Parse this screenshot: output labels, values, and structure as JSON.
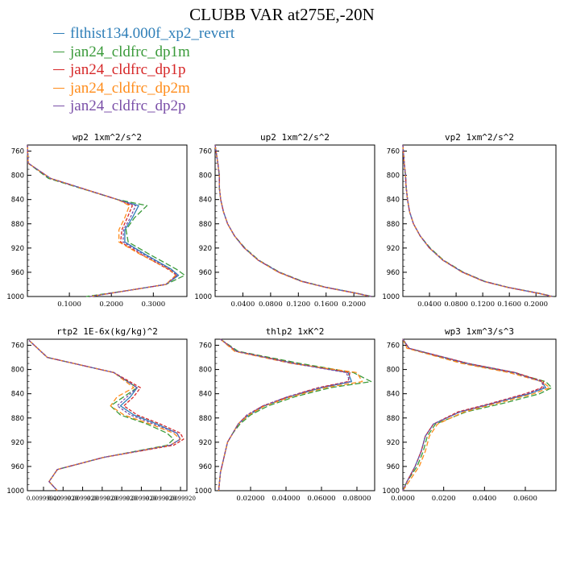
{
  "title": "CLUBB VAR at275E,-20N",
  "legend": [
    {
      "label": "flthist134.000f_xp2_revert",
      "color": "#2f7fb8"
    },
    {
      "label": "jan24_cldfrc_dp1m",
      "color": "#3a9a3a"
    },
    {
      "label": "jan24_cldfrc_dp1p",
      "color": "#d62728"
    },
    {
      "label": "jan24_cldfrc_dp2m",
      "color": "#ff8c1a"
    },
    {
      "label": "jan24_cldfrc_dp2p",
      "color": "#7a4fa8"
    }
  ],
  "chart_data": [
    {
      "type": "line",
      "title": "wp2  1xm^2/s^2",
      "ylim": [
        1000,
        750
      ],
      "xlim": [
        0,
        0.38
      ],
      "yticks": [
        "760",
        "800",
        "840",
        "880",
        "920",
        "960",
        "1000"
      ],
      "xticks": [
        "0.1000",
        "0.2000",
        "0.3000"
      ],
      "y": [
        750,
        780,
        805,
        840,
        850,
        870,
        890,
        910,
        930,
        955,
        965,
        980,
        990,
        1000
      ],
      "series": [
        {
          "name": "flthist134.000f_xp2_revert",
          "values": [
            0,
            0.002,
            0.055,
            0.215,
            0.265,
            0.25,
            0.232,
            0.232,
            0.28,
            0.343,
            0.36,
            0.33,
            0.24,
            0.15
          ]
        },
        {
          "name": "jan24_cldfrc_dp1m",
          "values": [
            0,
            0.002,
            0.05,
            0.215,
            0.285,
            0.255,
            0.235,
            0.24,
            0.29,
            0.355,
            0.375,
            0.33,
            0.24,
            0.14
          ]
        },
        {
          "name": "jan24_cldfrc_dp1p",
          "values": [
            0,
            0.002,
            0.055,
            0.215,
            0.25,
            0.238,
            0.225,
            0.222,
            0.27,
            0.335,
            0.355,
            0.33,
            0.24,
            0.15
          ]
        },
        {
          "name": "jan24_cldfrc_dp2m",
          "values": [
            0,
            0.002,
            0.055,
            0.215,
            0.243,
            0.232,
            0.218,
            0.218,
            0.268,
            0.338,
            0.353,
            0.33,
            0.24,
            0.15
          ]
        },
        {
          "name": "jan24_cldfrc_dp2p",
          "values": [
            0,
            0.002,
            0.055,
            0.215,
            0.258,
            0.245,
            0.229,
            0.228,
            0.275,
            0.34,
            0.357,
            0.33,
            0.24,
            0.15
          ]
        }
      ]
    },
    {
      "type": "line",
      "title": "up2  1xm^2/s^2",
      "ylim": [
        1000,
        750
      ],
      "xlim": [
        0,
        0.23
      ],
      "yticks": [
        "760",
        "800",
        "840",
        "880",
        "920",
        "960",
        "1000"
      ],
      "xticks": [
        "0.0400",
        "0.0800",
        "0.1200",
        "0.1600",
        "0.2000"
      ],
      "y": [
        750,
        780,
        800,
        820,
        840,
        860,
        880,
        900,
        920,
        940,
        960,
        975,
        985,
        995,
        1000
      ],
      "series": [
        {
          "name": "flthist134.000f_xp2_revert",
          "values": [
            0,
            0.004,
            0.006,
            0.006,
            0.008,
            0.012,
            0.018,
            0.028,
            0.042,
            0.062,
            0.092,
            0.125,
            0.16,
            0.205,
            0.225
          ]
        },
        {
          "name": "jan24_cldfrc_dp1m",
          "values": [
            0,
            0.004,
            0.006,
            0.006,
            0.008,
            0.012,
            0.018,
            0.028,
            0.043,
            0.063,
            0.093,
            0.126,
            0.161,
            0.206,
            0.226
          ]
        },
        {
          "name": "jan24_cldfrc_dp1p",
          "values": [
            0,
            0.004,
            0.006,
            0.006,
            0.008,
            0.012,
            0.018,
            0.028,
            0.042,
            0.062,
            0.092,
            0.125,
            0.16,
            0.205,
            0.225
          ]
        },
        {
          "name": "jan24_cldfrc_dp2m",
          "values": [
            0,
            0.004,
            0.006,
            0.006,
            0.008,
            0.012,
            0.018,
            0.028,
            0.042,
            0.062,
            0.091,
            0.124,
            0.159,
            0.204,
            0.224
          ]
        },
        {
          "name": "jan24_cldfrc_dp2p",
          "values": [
            0,
            0.004,
            0.006,
            0.006,
            0.008,
            0.012,
            0.018,
            0.028,
            0.042,
            0.062,
            0.092,
            0.125,
            0.16,
            0.205,
            0.225
          ]
        }
      ]
    },
    {
      "type": "line",
      "title": "vp2  1xm^2/s^2",
      "ylim": [
        1000,
        750
      ],
      "xlim": [
        0,
        0.23
      ],
      "yticks": [
        "760",
        "800",
        "840",
        "880",
        "920",
        "960",
        "1000"
      ],
      "xticks": [
        "0.0400",
        "0.0800",
        "0.1200",
        "0.1600",
        "0.2000"
      ],
      "y": [
        750,
        780,
        800,
        820,
        840,
        860,
        880,
        900,
        920,
        940,
        960,
        975,
        985,
        995,
        1000
      ],
      "series": [
        {
          "name": "flthist134.000f_xp2_revert",
          "values": [
            0,
            0.002,
            0.004,
            0.005,
            0.007,
            0.01,
            0.016,
            0.026,
            0.04,
            0.06,
            0.09,
            0.122,
            0.158,
            0.205,
            0.225
          ]
        },
        {
          "name": "jan24_cldfrc_dp1m",
          "values": [
            0,
            0.002,
            0.004,
            0.005,
            0.007,
            0.01,
            0.016,
            0.026,
            0.041,
            0.061,
            0.091,
            0.123,
            0.159,
            0.206,
            0.226
          ]
        },
        {
          "name": "jan24_cldfrc_dp1p",
          "values": [
            0,
            0.002,
            0.004,
            0.005,
            0.007,
            0.01,
            0.016,
            0.026,
            0.04,
            0.06,
            0.09,
            0.122,
            0.158,
            0.205,
            0.225
          ]
        },
        {
          "name": "jan24_cldfrc_dp2m",
          "values": [
            0,
            0.002,
            0.004,
            0.005,
            0.007,
            0.01,
            0.016,
            0.026,
            0.04,
            0.06,
            0.089,
            0.121,
            0.157,
            0.204,
            0.224
          ]
        },
        {
          "name": "jan24_cldfrc_dp2p",
          "values": [
            0,
            0.002,
            0.004,
            0.005,
            0.007,
            0.01,
            0.016,
            0.026,
            0.04,
            0.06,
            0.09,
            0.122,
            0.158,
            0.205,
            0.225
          ]
        }
      ]
    },
    {
      "type": "line",
      "title": "rtp2  1E-6x(kg/kg)^2",
      "ylim": [
        1000,
        750
      ],
      "xlim": [
        0.00998,
        0.058
      ],
      "yticks": [
        "760",
        "800",
        "840",
        "880",
        "920",
        "960",
        "1000"
      ],
      "xticks": [
        "0.00999920",
        "0.0099920",
        "0.0099920",
        "0.0099920",
        "0.0099920",
        "0.0099920",
        "0.0099920",
        "0.0099920"
      ],
      "y": [
        752,
        780,
        805,
        830,
        845,
        860,
        875,
        890,
        905,
        915,
        925,
        945,
        965,
        985,
        1000
      ],
      "series": [
        {
          "name": "flthist134.000f_xp2_revert",
          "values": [
            0.0105,
            0.016,
            0.036,
            0.043,
            0.041,
            0.038,
            0.042,
            0.049,
            0.055,
            0.056,
            0.053,
            0.033,
            0.019,
            0.0165,
            0.019
          ]
        },
        {
          "name": "jan24_cldfrc_dp1m",
          "values": [
            0.0105,
            0.016,
            0.036,
            0.043,
            0.039,
            0.035,
            0.038,
            0.046,
            0.052,
            0.054,
            0.052,
            0.033,
            0.019,
            0.0165,
            0.019
          ]
        },
        {
          "name": "jan24_cldfrc_dp1p",
          "values": [
            0.0105,
            0.016,
            0.036,
            0.044,
            0.042,
            0.039,
            0.043,
            0.05,
            0.056,
            0.057,
            0.054,
            0.033,
            0.019,
            0.0165,
            0.019
          ]
        },
        {
          "name": "jan24_cldfrc_dp2m",
          "values": [
            0.0105,
            0.016,
            0.036,
            0.042,
            0.037,
            0.035,
            0.039,
            0.047,
            0.054,
            0.056,
            0.053,
            0.033,
            0.019,
            0.0165,
            0.019
          ]
        },
        {
          "name": "jan24_cldfrc_dp2p",
          "values": [
            0.0105,
            0.016,
            0.036,
            0.043,
            0.04,
            0.037,
            0.041,
            0.048,
            0.055,
            0.056,
            0.053,
            0.033,
            0.019,
            0.0165,
            0.019
          ]
        }
      ]
    },
    {
      "type": "line",
      "title": "thlp2  1xK^2",
      "ylim": [
        1000,
        750
      ],
      "xlim": [
        0,
        0.09
      ],
      "yticks": [
        "760",
        "800",
        "840",
        "880",
        "920",
        "960",
        "1000"
      ],
      "xticks": [
        "0.02000",
        "0.04000",
        "0.06000",
        "0.08000"
      ],
      "y": [
        750,
        770,
        790,
        805,
        820,
        830,
        845,
        860,
        875,
        890,
        905,
        920,
        945,
        970,
        1000
      ],
      "series": [
        {
          "name": "flthist134.000f_xp2_revert",
          "values": [
            0.003,
            0.012,
            0.045,
            0.075,
            0.077,
            0.06,
            0.042,
            0.028,
            0.019,
            0.013,
            0.01,
            0.007,
            0.005,
            0.003,
            0.002
          ]
        },
        {
          "name": "jan24_cldfrc_dp1m",
          "values": [
            0.003,
            0.013,
            0.048,
            0.078,
            0.088,
            0.065,
            0.045,
            0.03,
            0.02,
            0.014,
            0.01,
            0.007,
            0.005,
            0.003,
            0.002
          ]
        },
        {
          "name": "jan24_cldfrc_dp1p",
          "values": [
            0.003,
            0.012,
            0.045,
            0.076,
            0.075,
            0.058,
            0.041,
            0.027,
            0.018,
            0.013,
            0.01,
            0.007,
            0.005,
            0.003,
            0.002
          ]
        },
        {
          "name": "jan24_cldfrc_dp2m",
          "values": [
            0.003,
            0.011,
            0.043,
            0.08,
            0.083,
            0.062,
            0.043,
            0.028,
            0.019,
            0.013,
            0.01,
            0.007,
            0.005,
            0.003,
            0.002
          ]
        },
        {
          "name": "jan24_cldfrc_dp2p",
          "values": [
            0.003,
            0.012,
            0.044,
            0.074,
            0.076,
            0.059,
            0.041,
            0.027,
            0.018,
            0.013,
            0.01,
            0.007,
            0.005,
            0.003,
            0.002
          ]
        }
      ]
    },
    {
      "type": "line",
      "title": "wp3  1xm^3/s^3",
      "ylim": [
        1000,
        750
      ],
      "xlim": [
        0,
        0.075
      ],
      "yticks": [
        "760",
        "800",
        "840",
        "880",
        "920",
        "960",
        "1000"
      ],
      "xticks": [
        "0.0000",
        "0.0200",
        "0.0400",
        "0.0600"
      ],
      "y": [
        750,
        765,
        790,
        805,
        820,
        830,
        840,
        855,
        870,
        890,
        910,
        935,
        960,
        985,
        1000
      ],
      "series": [
        {
          "name": "flthist134.000f_xp2_revert",
          "values": [
            0,
            0.003,
            0.032,
            0.055,
            0.068,
            0.07,
            0.062,
            0.045,
            0.028,
            0.015,
            0.011,
            0.009,
            0.006,
            0.002,
            0
          ]
        },
        {
          "name": "jan24_cldfrc_dp1m",
          "values": [
            0,
            0.003,
            0.03,
            0.054,
            0.07,
            0.073,
            0.067,
            0.05,
            0.031,
            0.016,
            0.012,
            0.01,
            0.007,
            0.002,
            0
          ]
        },
        {
          "name": "jan24_cldfrc_dp1p",
          "values": [
            0,
            0.003,
            0.032,
            0.055,
            0.069,
            0.068,
            0.06,
            0.044,
            0.027,
            0.015,
            0.011,
            0.009,
            0.006,
            0.002,
            0
          ]
        },
        {
          "name": "jan24_cldfrc_dp2m",
          "values": [
            0,
            0.002,
            0.029,
            0.052,
            0.068,
            0.072,
            0.064,
            0.047,
            0.03,
            0.017,
            0.013,
            0.011,
            0.008,
            0.003,
            0
          ]
        },
        {
          "name": "jan24_cldfrc_dp2p",
          "values": [
            0,
            0.003,
            0.031,
            0.054,
            0.068,
            0.069,
            0.061,
            0.045,
            0.028,
            0.015,
            0.011,
            0.009,
            0.006,
            0.002,
            0
          ]
        }
      ]
    }
  ]
}
